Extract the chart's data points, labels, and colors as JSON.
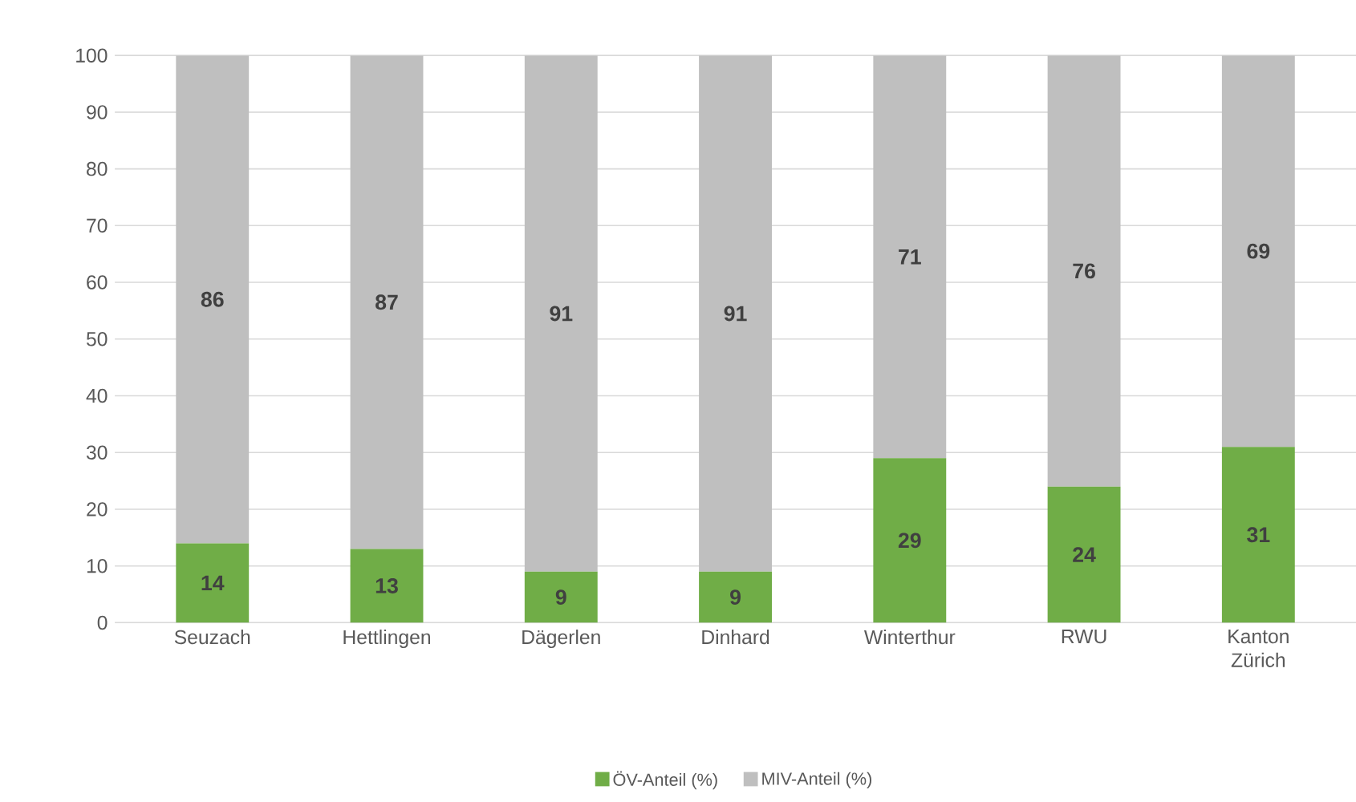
{
  "chart_data": {
    "type": "bar",
    "stacked": true,
    "categories": [
      "Seuzach",
      "Hettlingen",
      "Dägerlen",
      "Dinhard",
      "Winterthur",
      "RWU",
      "Kanton Zürich"
    ],
    "series": [
      {
        "name": "ÖV-Anteil (%)",
        "color": "#70ad47",
        "values": [
          14,
          13,
          9,
          9,
          29,
          24,
          31
        ]
      },
      {
        "name": "MIV-Anteil (%)",
        "color": "#bfbfbf",
        "values": [
          86,
          87,
          91,
          91,
          71,
          76,
          69
        ]
      }
    ],
    "ylim": [
      0,
      100
    ],
    "yticks": [
      0,
      10,
      20,
      30,
      40,
      50,
      60,
      70,
      80,
      90,
      100
    ],
    "grid": "y",
    "legend": "bottom",
    "data_labels": true
  }
}
